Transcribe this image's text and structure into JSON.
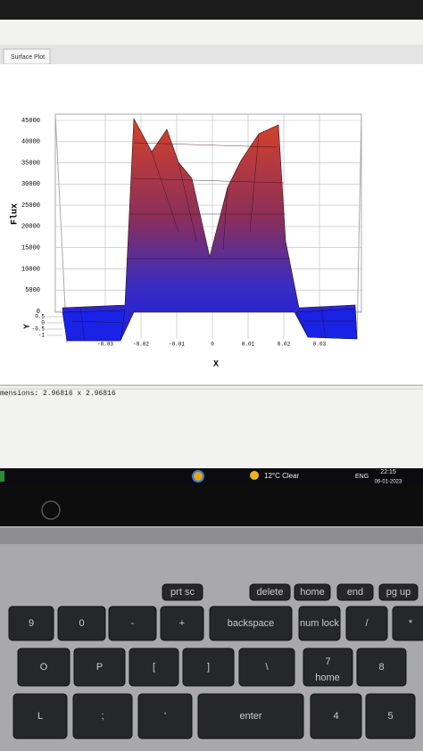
{
  "window": {
    "tab": "Surface Plot",
    "status": "mensions: 2.96816 x 2.96816"
  },
  "plot": {
    "y_label": "Flux",
    "x_label": "X",
    "z_label": "Y",
    "yticks": [
      0,
      5000,
      10000,
      15000,
      20000,
      25000,
      30000,
      35000,
      40000,
      45000
    ],
    "xticks": [
      -0.03,
      -0.02,
      -0.01,
      0,
      0.01,
      0.02,
      0.03
    ],
    "zticks": [
      0.5,
      0,
      -0.5,
      -1
    ]
  },
  "taskbar": {
    "weather": "12°C Clear",
    "language": "ENG",
    "time": "22:15",
    "date": "06-01-2023"
  },
  "keyboard": {
    "function_row": [
      "prt sc",
      "delete",
      "home",
      "end",
      "pg up"
    ],
    "row2": [
      "9",
      "0",
      "-",
      "+",
      "backspace",
      "num lock",
      "/",
      "*"
    ],
    "row3": [
      "O",
      "P",
      "[",
      "]",
      "\\",
      "7",
      "8"
    ],
    "row3_sub": [
      "home"
    ],
    "row4": [
      "L",
      ";",
      "'",
      "enter",
      "4",
      "5"
    ]
  }
}
